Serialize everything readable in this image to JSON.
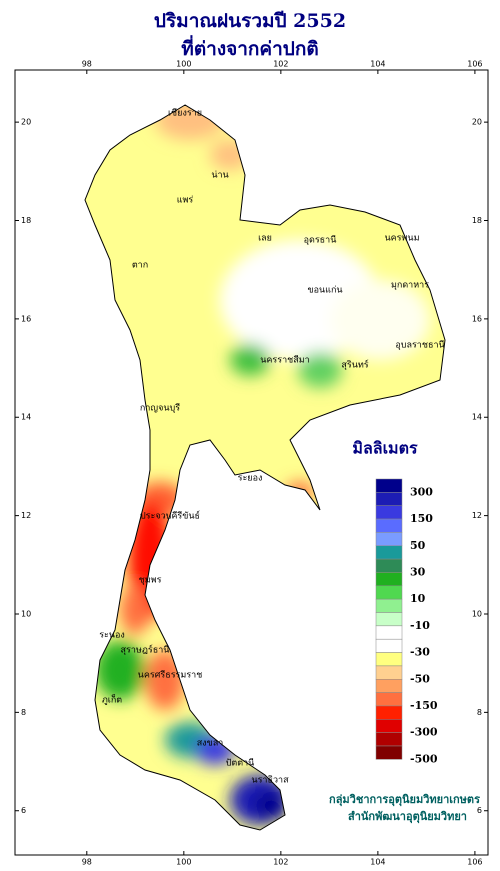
{
  "header": {
    "title": "ปริมาณฝนรวมปี 2552",
    "subtitle": "ที่ต่างจากค่าปกติ"
  },
  "map": {
    "xlim": [
      96.52,
      106.27
    ],
    "ylim": [
      5.1,
      21.06
    ],
    "xticks": [
      98,
      100,
      102,
      104,
      106
    ],
    "yticks": [
      20,
      18,
      16,
      14,
      12,
      10,
      8,
      6
    ],
    "places": [
      "เชียงราย",
      "น่าน",
      "แพร่",
      "ตาก",
      "เลย",
      "อุดรธานี",
      "นครพนม",
      "ขอนแก่น",
      "มุกดาหาร",
      "นครราชสีมา",
      "สุรินทร์",
      "อุบลราชธานี",
      "กาญจนบุรี",
      "ระยอง",
      "ประจวบคีรีขันธ์",
      "ชุมพร",
      "ระนอง",
      "สุราษฎร์ธานี",
      "ภูเก็ต",
      "นครศรีธรรมราช",
      "สงขลา",
      "ปัตตานี",
      "นราธิวาส"
    ]
  },
  "legend": {
    "title": "มิลลิเมตร",
    "labels": [
      300,
      150,
      50,
      30,
      10,
      -10,
      -30,
      -50,
      -150,
      -300,
      -500
    ],
    "colors": [
      "#00008b",
      "#1c1cb4",
      "#3a3ae0",
      "#5a6cff",
      "#7a9cff",
      "#1a9a9a",
      "#2e8b57",
      "#20b020",
      "#50d850",
      "#90f090",
      "#c8ffc8",
      "#ffffff",
      "#ffffff",
      "#ffff80",
      "#ffd090",
      "#ffa060",
      "#ff7040",
      "#ff2000",
      "#e00000",
      "#b00000",
      "#800000"
    ]
  },
  "credits": {
    "line1": "กลุ่มวิชาการอุตุนิยมวิทยาเกษตร",
    "line2": "สำนักพัฒนาอุตุนิยมวิทยา"
  }
}
